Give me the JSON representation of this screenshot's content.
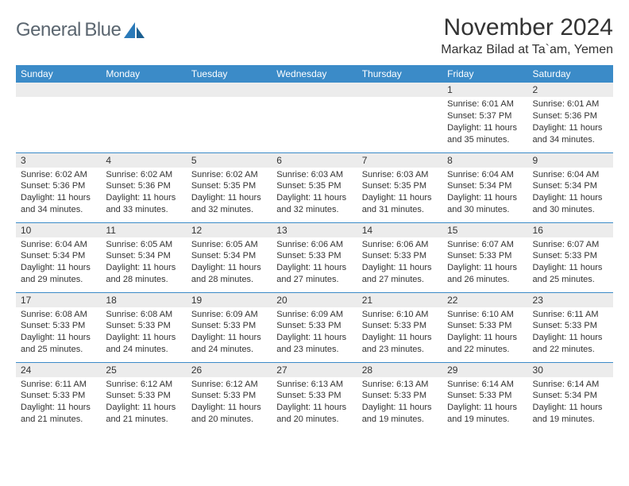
{
  "logo": {
    "gray": "General",
    "blue": "Blue"
  },
  "title": "November 2024",
  "location": "Markaz Bilad at Ta`am, Yemen",
  "colors": {
    "header_bg": "#3b8bc8",
    "header_text": "#ffffff",
    "daynum_bg": "#ececec",
    "border": "#3b8bc8",
    "text": "#333333",
    "logo_gray": "#5b6670",
    "logo_blue": "#2a7ab9"
  },
  "weekdays": [
    "Sunday",
    "Monday",
    "Tuesday",
    "Wednesday",
    "Thursday",
    "Friday",
    "Saturday"
  ],
  "weeks": [
    [
      null,
      null,
      null,
      null,
      null,
      {
        "n": "1",
        "sr": "6:01 AM",
        "ss": "5:37 PM",
        "dl": "11 hours and 35 minutes."
      },
      {
        "n": "2",
        "sr": "6:01 AM",
        "ss": "5:36 PM",
        "dl": "11 hours and 34 minutes."
      }
    ],
    [
      {
        "n": "3",
        "sr": "6:02 AM",
        "ss": "5:36 PM",
        "dl": "11 hours and 34 minutes."
      },
      {
        "n": "4",
        "sr": "6:02 AM",
        "ss": "5:36 PM",
        "dl": "11 hours and 33 minutes."
      },
      {
        "n": "5",
        "sr": "6:02 AM",
        "ss": "5:35 PM",
        "dl": "11 hours and 32 minutes."
      },
      {
        "n": "6",
        "sr": "6:03 AM",
        "ss": "5:35 PM",
        "dl": "11 hours and 32 minutes."
      },
      {
        "n": "7",
        "sr": "6:03 AM",
        "ss": "5:35 PM",
        "dl": "11 hours and 31 minutes."
      },
      {
        "n": "8",
        "sr": "6:04 AM",
        "ss": "5:34 PM",
        "dl": "11 hours and 30 minutes."
      },
      {
        "n": "9",
        "sr": "6:04 AM",
        "ss": "5:34 PM",
        "dl": "11 hours and 30 minutes."
      }
    ],
    [
      {
        "n": "10",
        "sr": "6:04 AM",
        "ss": "5:34 PM",
        "dl": "11 hours and 29 minutes."
      },
      {
        "n": "11",
        "sr": "6:05 AM",
        "ss": "5:34 PM",
        "dl": "11 hours and 28 minutes."
      },
      {
        "n": "12",
        "sr": "6:05 AM",
        "ss": "5:34 PM",
        "dl": "11 hours and 28 minutes."
      },
      {
        "n": "13",
        "sr": "6:06 AM",
        "ss": "5:33 PM",
        "dl": "11 hours and 27 minutes."
      },
      {
        "n": "14",
        "sr": "6:06 AM",
        "ss": "5:33 PM",
        "dl": "11 hours and 27 minutes."
      },
      {
        "n": "15",
        "sr": "6:07 AM",
        "ss": "5:33 PM",
        "dl": "11 hours and 26 minutes."
      },
      {
        "n": "16",
        "sr": "6:07 AM",
        "ss": "5:33 PM",
        "dl": "11 hours and 25 minutes."
      }
    ],
    [
      {
        "n": "17",
        "sr": "6:08 AM",
        "ss": "5:33 PM",
        "dl": "11 hours and 25 minutes."
      },
      {
        "n": "18",
        "sr": "6:08 AM",
        "ss": "5:33 PM",
        "dl": "11 hours and 24 minutes."
      },
      {
        "n": "19",
        "sr": "6:09 AM",
        "ss": "5:33 PM",
        "dl": "11 hours and 24 minutes."
      },
      {
        "n": "20",
        "sr": "6:09 AM",
        "ss": "5:33 PM",
        "dl": "11 hours and 23 minutes."
      },
      {
        "n": "21",
        "sr": "6:10 AM",
        "ss": "5:33 PM",
        "dl": "11 hours and 23 minutes."
      },
      {
        "n": "22",
        "sr": "6:10 AM",
        "ss": "5:33 PM",
        "dl": "11 hours and 22 minutes."
      },
      {
        "n": "23",
        "sr": "6:11 AM",
        "ss": "5:33 PM",
        "dl": "11 hours and 22 minutes."
      }
    ],
    [
      {
        "n": "24",
        "sr": "6:11 AM",
        "ss": "5:33 PM",
        "dl": "11 hours and 21 minutes."
      },
      {
        "n": "25",
        "sr": "6:12 AM",
        "ss": "5:33 PM",
        "dl": "11 hours and 21 minutes."
      },
      {
        "n": "26",
        "sr": "6:12 AM",
        "ss": "5:33 PM",
        "dl": "11 hours and 20 minutes."
      },
      {
        "n": "27",
        "sr": "6:13 AM",
        "ss": "5:33 PM",
        "dl": "11 hours and 20 minutes."
      },
      {
        "n": "28",
        "sr": "6:13 AM",
        "ss": "5:33 PM",
        "dl": "11 hours and 19 minutes."
      },
      {
        "n": "29",
        "sr": "6:14 AM",
        "ss": "5:33 PM",
        "dl": "11 hours and 19 minutes."
      },
      {
        "n": "30",
        "sr": "6:14 AM",
        "ss": "5:34 PM",
        "dl": "11 hours and 19 minutes."
      }
    ]
  ],
  "labels": {
    "sunrise": "Sunrise:",
    "sunset": "Sunset:",
    "daylight": "Daylight:"
  }
}
